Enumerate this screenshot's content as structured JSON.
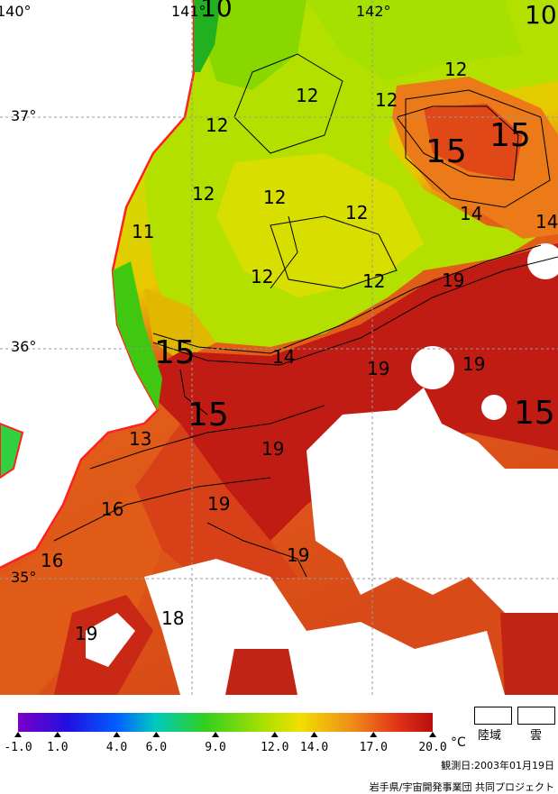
{
  "map": {
    "lon_labels": [
      "140°",
      "141°",
      "142°"
    ],
    "lat_labels": [
      "37°",
      "36°",
      "35°"
    ],
    "contour_labels": [
      "10",
      "10",
      "12",
      "12",
      "12",
      "12",
      "12",
      "12",
      "12",
      "12",
      "12",
      "11",
      "14",
      "14",
      "14",
      "15",
      "15",
      "15",
      "15",
      "15",
      "13",
      "16",
      "16",
      "19",
      "19",
      "19",
      "19",
      "19",
      "19",
      "19",
      "18",
      "14"
    ]
  },
  "colorbar": {
    "ticks": [
      "-1.0",
      "1.0",
      "4.0",
      "6.0",
      "9.0",
      "12.0",
      "14.0",
      "17.0",
      "20.0"
    ],
    "unit": "°C",
    "min": -1.0,
    "max": 20.0,
    "tick_values": [
      -1.0,
      1.0,
      4.0,
      6.0,
      9.0,
      12.0,
      14.0,
      17.0,
      20.0
    ]
  },
  "legend": {
    "land_label": "陸域",
    "cloud_label": "雲"
  },
  "observation_date": "観測日:2003年01月19日",
  "credit": "岩手県/宇宙開発事業団 共同プロジェクト",
  "colors": {
    "cold": "#7a00c8",
    "blue": "#0030ff",
    "green": "#70e000",
    "yellow": "#d8e000",
    "orange": "#f08020",
    "warm": "#c01010",
    "coast": "#ff2020"
  }
}
